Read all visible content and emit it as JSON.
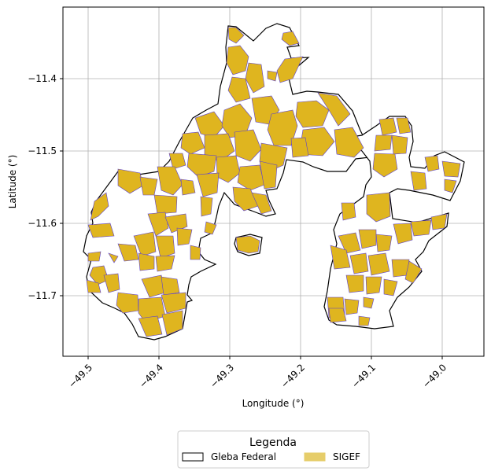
{
  "map": {
    "x_axis_label": "Longitude (°)",
    "y_axis_label": "Latitude (°)",
    "x_ticks": [
      "−49.5",
      "−49.4",
      "−49.3",
      "−49.2",
      "−49.1",
      "−49.0"
    ],
    "y_ticks": [
      "−11.4",
      "−11.5",
      "−11.6",
      "−11.7"
    ],
    "x_range": [
      -49.535,
      -48.955
    ],
    "y_range": [
      -11.785,
      -11.205
    ],
    "grid": true
  },
  "legend": {
    "title": "Legenda",
    "items": [
      {
        "label": "Gleba Federal",
        "fill": "#ffffff",
        "stroke": "#000000"
      },
      {
        "label": "SIGEF",
        "fill": "#e6cd6a",
        "stroke": "#e6cd6a"
      }
    ]
  },
  "colors": {
    "gleba_outline": "#000000",
    "sigef_fill": "#dfb51f",
    "sigef_stroke": "#5a3fd0",
    "grid": "#b0b0b0"
  }
}
